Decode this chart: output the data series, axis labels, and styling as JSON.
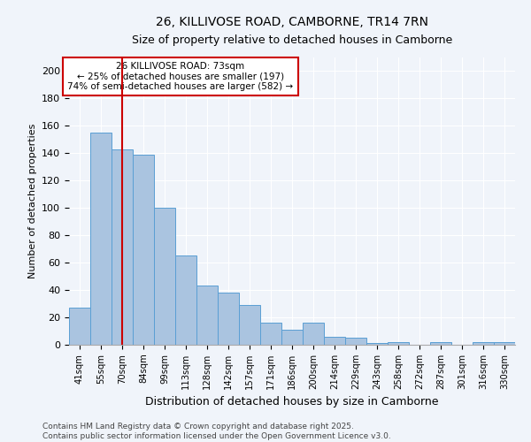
{
  "title": "26, KILLIVOSE ROAD, CAMBORNE, TR14 7RN",
  "subtitle": "Size of property relative to detached houses in Camborne",
  "xlabel": "Distribution of detached houses by size in Camborne",
  "ylabel": "Number of detached properties",
  "categories": [
    "41sqm",
    "55sqm",
    "70sqm",
    "84sqm",
    "99sqm",
    "113sqm",
    "128sqm",
    "142sqm",
    "157sqm",
    "171sqm",
    "186sqm",
    "200sqm",
    "214sqm",
    "229sqm",
    "243sqm",
    "258sqm",
    "272sqm",
    "287sqm",
    "301sqm",
    "316sqm",
    "330sqm"
  ],
  "values": [
    27,
    155,
    143,
    139,
    100,
    65,
    43,
    38,
    29,
    16,
    11,
    16,
    6,
    5,
    1,
    2,
    0,
    2,
    0,
    2,
    2
  ],
  "bar_color": "#aac4e0",
  "bar_edgecolor": "#5a9fd4",
  "background_color": "#f0f4fa",
  "grid_color": "#ffffff",
  "vline_x": 2,
  "vline_color": "#cc0000",
  "annotation_line1": "26 KILLIVOSE ROAD: 73sqm",
  "annotation_line2": "← 25% of detached houses are smaller (197)",
  "annotation_line3": "74% of semi-detached houses are larger (582) →",
  "annotation_box_color": "#ffffff",
  "annotation_box_edgecolor": "#cc0000",
  "ylim": [
    0,
    210
  ],
  "yticks": [
    0,
    20,
    40,
    60,
    80,
    100,
    120,
    140,
    160,
    180,
    200
  ],
  "footer1": "Contains HM Land Registry data © Crown copyright and database right 2025.",
  "footer2": "Contains public sector information licensed under the Open Government Licence v3.0."
}
